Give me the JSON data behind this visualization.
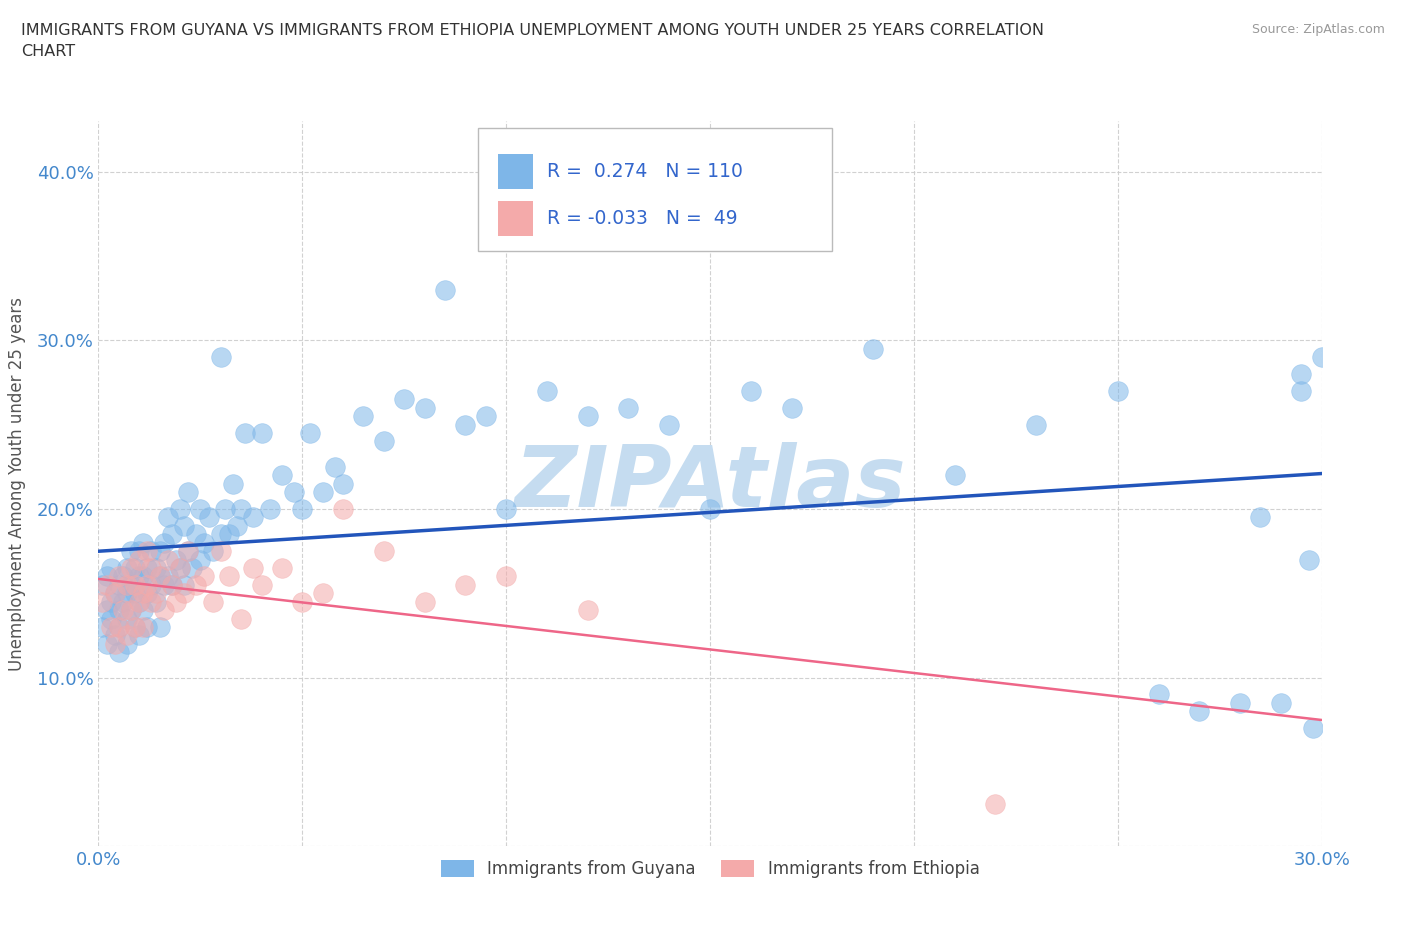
{
  "title": "IMMIGRANTS FROM GUYANA VS IMMIGRANTS FROM ETHIOPIA UNEMPLOYMENT AMONG YOUTH UNDER 25 YEARS CORRELATION\nCHART",
  "source_text": "Source: ZipAtlas.com",
  "ylabel": "Unemployment Among Youth under 25 years",
  "xlim": [
    0.0,
    0.3
  ],
  "ylim": [
    0.0,
    0.43
  ],
  "xticks": [
    0.0,
    0.05,
    0.1,
    0.15,
    0.2,
    0.25,
    0.3
  ],
  "yticks": [
    0.0,
    0.1,
    0.2,
    0.3,
    0.4
  ],
  "xtick_labels": [
    "0.0%",
    "",
    "",
    "",
    "",
    "",
    "30.0%"
  ],
  "ytick_labels": [
    "",
    "10.0%",
    "20.0%",
    "30.0%",
    "40.0%"
  ],
  "guyana_color": "#7EB6E8",
  "ethiopia_color": "#F4AAAA",
  "trend_guyana_color": "#2255BB",
  "trend_ethiopia_color": "#EE6688",
  "guyana_R": 0.274,
  "guyana_N": 110,
  "ethiopia_R": -0.033,
  "ethiopia_N": 49,
  "watermark": "ZIPAtlas",
  "watermark_color": "#C5DCF0",
  "legend_text_color": "#3366CC",
  "legend_guyana_label": "Immigrants from Guyana",
  "legend_ethiopia_label": "Immigrants from Ethiopia",
  "guyana_x": [
    0.001,
    0.001,
    0.002,
    0.002,
    0.002,
    0.003,
    0.003,
    0.003,
    0.004,
    0.004,
    0.005,
    0.005,
    0.005,
    0.005,
    0.006,
    0.006,
    0.007,
    0.007,
    0.007,
    0.007,
    0.008,
    0.008,
    0.008,
    0.009,
    0.009,
    0.009,
    0.01,
    0.01,
    0.01,
    0.01,
    0.011,
    0.011,
    0.011,
    0.012,
    0.012,
    0.012,
    0.013,
    0.013,
    0.014,
    0.014,
    0.015,
    0.015,
    0.015,
    0.016,
    0.016,
    0.017,
    0.017,
    0.018,
    0.018,
    0.019,
    0.02,
    0.02,
    0.021,
    0.021,
    0.022,
    0.022,
    0.023,
    0.024,
    0.025,
    0.025,
    0.026,
    0.027,
    0.028,
    0.03,
    0.03,
    0.031,
    0.032,
    0.033,
    0.034,
    0.035,
    0.036,
    0.038,
    0.04,
    0.042,
    0.045,
    0.048,
    0.05,
    0.052,
    0.055,
    0.058,
    0.06,
    0.065,
    0.07,
    0.075,
    0.08,
    0.085,
    0.09,
    0.095,
    0.1,
    0.11,
    0.12,
    0.13,
    0.14,
    0.15,
    0.16,
    0.17,
    0.19,
    0.21,
    0.23,
    0.25,
    0.26,
    0.27,
    0.28,
    0.285,
    0.29,
    0.295,
    0.295,
    0.297,
    0.298,
    0.3
  ],
  "guyana_y": [
    0.155,
    0.13,
    0.14,
    0.16,
    0.12,
    0.135,
    0.145,
    0.165,
    0.125,
    0.15,
    0.14,
    0.155,
    0.115,
    0.13,
    0.145,
    0.16,
    0.135,
    0.15,
    0.12,
    0.165,
    0.14,
    0.155,
    0.175,
    0.13,
    0.15,
    0.165,
    0.145,
    0.16,
    0.125,
    0.175,
    0.14,
    0.16,
    0.18,
    0.15,
    0.165,
    0.13,
    0.155,
    0.175,
    0.145,
    0.165,
    0.16,
    0.175,
    0.13,
    0.155,
    0.18,
    0.16,
    0.195,
    0.155,
    0.185,
    0.17,
    0.165,
    0.2,
    0.155,
    0.19,
    0.175,
    0.21,
    0.165,
    0.185,
    0.17,
    0.2,
    0.18,
    0.195,
    0.175,
    0.185,
    0.29,
    0.2,
    0.185,
    0.215,
    0.19,
    0.2,
    0.245,
    0.195,
    0.245,
    0.2,
    0.22,
    0.21,
    0.2,
    0.245,
    0.21,
    0.225,
    0.215,
    0.255,
    0.24,
    0.265,
    0.26,
    0.33,
    0.25,
    0.255,
    0.2,
    0.27,
    0.255,
    0.26,
    0.25,
    0.2,
    0.27,
    0.26,
    0.295,
    0.22,
    0.25,
    0.27,
    0.09,
    0.08,
    0.085,
    0.195,
    0.085,
    0.27,
    0.28,
    0.17,
    0.07,
    0.29
  ],
  "ethiopia_x": [
    0.001,
    0.002,
    0.003,
    0.004,
    0.004,
    0.005,
    0.005,
    0.006,
    0.007,
    0.007,
    0.008,
    0.008,
    0.009,
    0.009,
    0.01,
    0.01,
    0.011,
    0.011,
    0.012,
    0.012,
    0.013,
    0.013,
    0.014,
    0.015,
    0.016,
    0.017,
    0.018,
    0.019,
    0.02,
    0.021,
    0.022,
    0.024,
    0.026,
    0.028,
    0.03,
    0.032,
    0.035,
    0.038,
    0.04,
    0.045,
    0.05,
    0.055,
    0.06,
    0.07,
    0.08,
    0.09,
    0.1,
    0.12,
    0.22
  ],
  "ethiopia_y": [
    0.145,
    0.155,
    0.13,
    0.15,
    0.12,
    0.16,
    0.13,
    0.14,
    0.125,
    0.155,
    0.14,
    0.165,
    0.13,
    0.155,
    0.145,
    0.17,
    0.15,
    0.13,
    0.155,
    0.175,
    0.145,
    0.165,
    0.15,
    0.16,
    0.14,
    0.17,
    0.155,
    0.145,
    0.165,
    0.15,
    0.175,
    0.155,
    0.16,
    0.145,
    0.175,
    0.16,
    0.135,
    0.165,
    0.155,
    0.165,
    0.145,
    0.15,
    0.2,
    0.175,
    0.145,
    0.155,
    0.16,
    0.14,
    0.025
  ],
  "grid_color": "#cccccc",
  "background_color": "#ffffff"
}
